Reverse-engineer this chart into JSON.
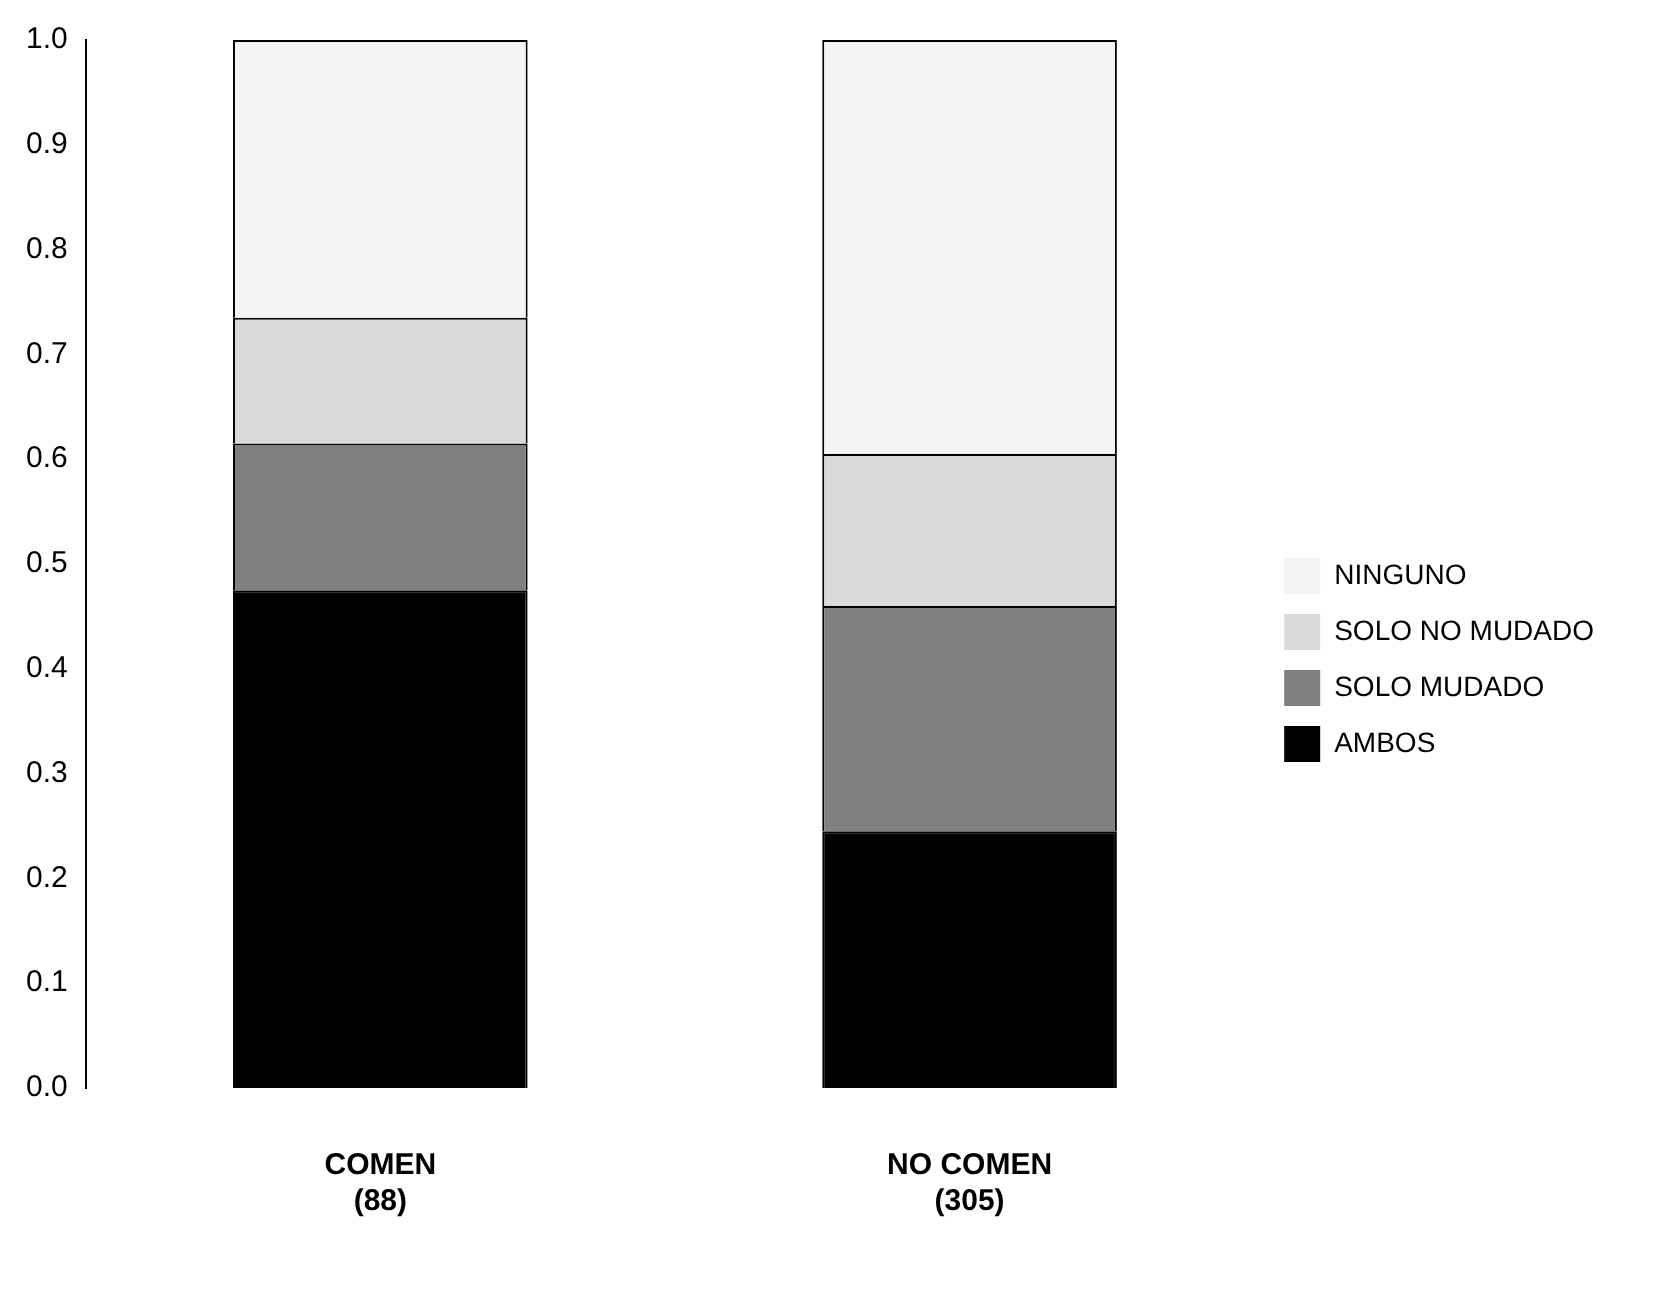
{
  "chart_data": {
    "type": "bar",
    "stacked": true,
    "categories": [
      "COMEN\n(88)",
      "NO COMEN\n(305)"
    ],
    "series": [
      {
        "name": "AMBOS",
        "color": "#000000",
        "values": [
          0.475,
          0.245
        ]
      },
      {
        "name": "SOLO MUDADO",
        "color": "#808080",
        "values": [
          0.14,
          0.215
        ]
      },
      {
        "name": "SOLO NO MUDADO",
        "color": "#d9d9d9",
        "values": [
          0.12,
          0.145
        ]
      },
      {
        "name": "NINGUNO",
        "color": "#f4f4f4",
        "values": [
          0.265,
          0.395
        ]
      }
    ],
    "ylim": [
      0,
      1
    ],
    "yticks": [
      {
        "value": 0,
        "label": "0.0"
      },
      {
        "value": 0.1,
        "label": "0.1"
      },
      {
        "value": 0.2,
        "label": "0.2"
      },
      {
        "value": 0.3,
        "label": "0.3"
      },
      {
        "value": 0.4,
        "label": "0.4"
      },
      {
        "value": 0.5,
        "label": "0.5"
      },
      {
        "value": 0.6,
        "label": "0.6"
      },
      {
        "value": 0.7,
        "label": "0.7"
      },
      {
        "value": 0.8,
        "label": "0.8"
      },
      {
        "value": 0.9,
        "label": "0.9"
      },
      {
        "value": 1,
        "label": "1.0"
      }
    ],
    "grid": false,
    "legend": "right"
  }
}
